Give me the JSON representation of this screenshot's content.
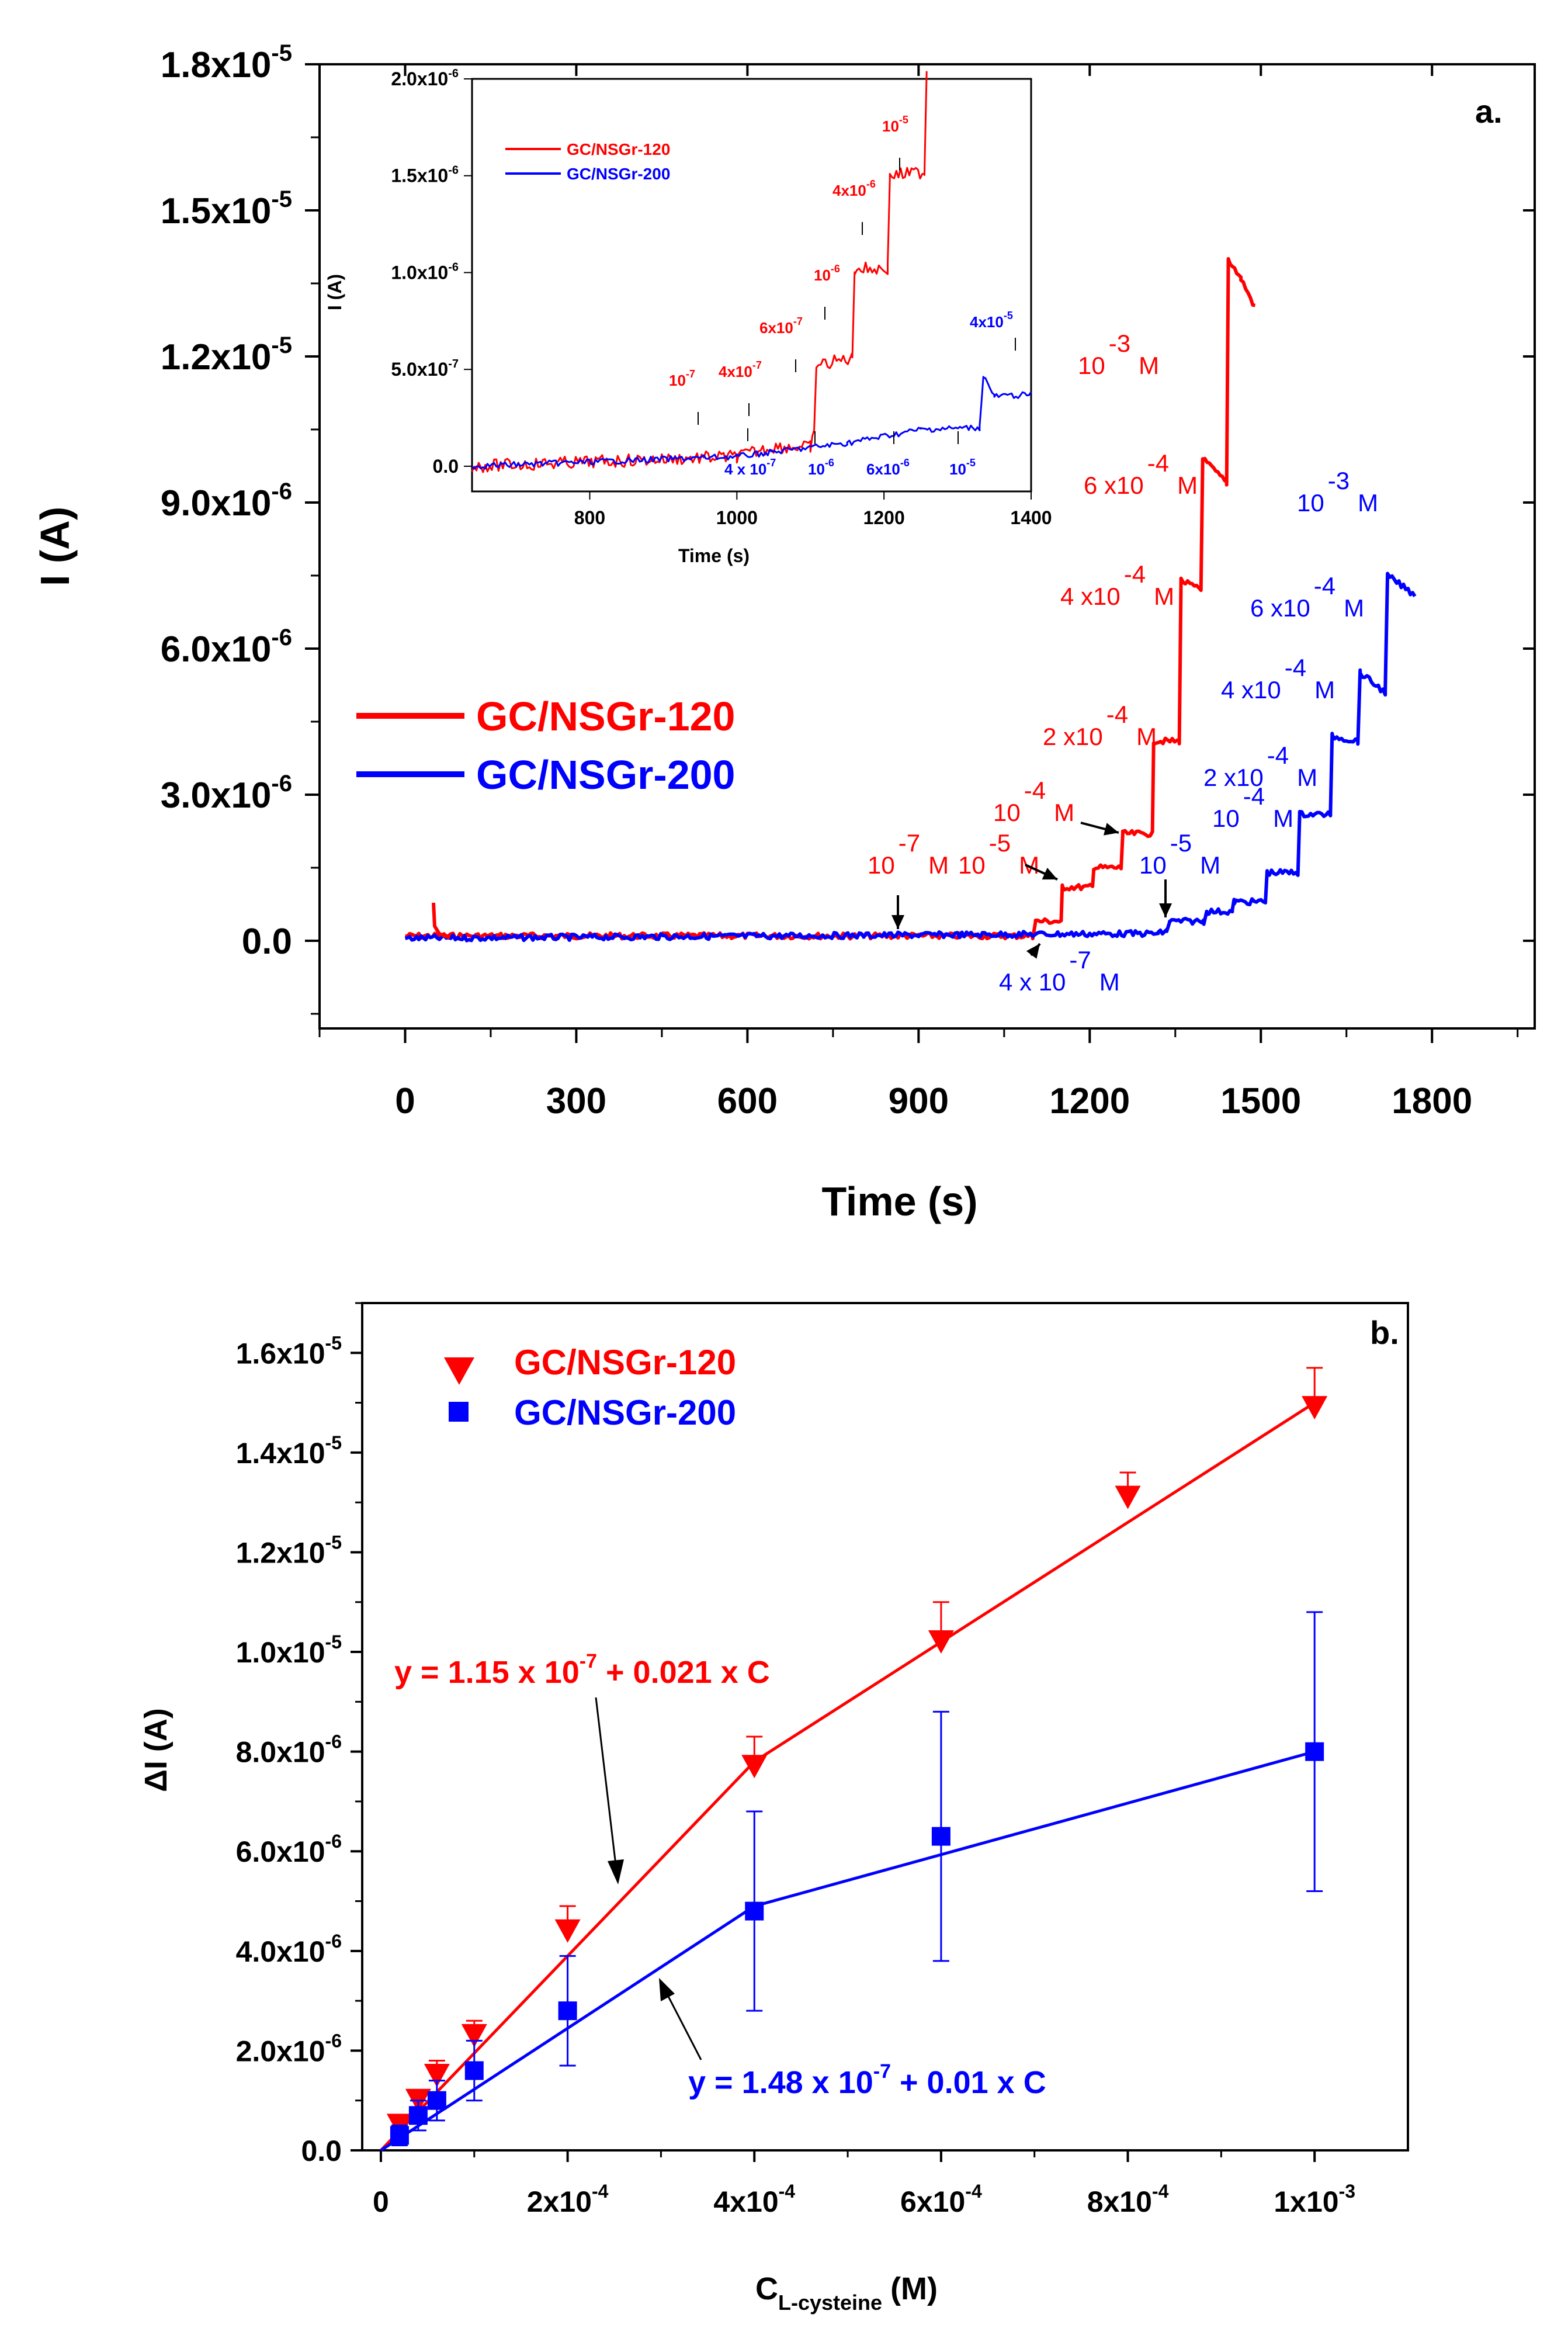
{
  "colors": {
    "red": "#ff0000",
    "blue": "#0000ff",
    "black": "#000000"
  },
  "chart_data": [
    {
      "panel": "a.",
      "type": "line",
      "xlabel": "Time (s)",
      "ylabel": "I (A)",
      "xlim": [
        -150,
        1980
      ],
      "ylim": [
        -1.8e-06,
        1.8e-05
      ],
      "xticks": [
        0,
        300,
        600,
        900,
        1200,
        1500,
        1800
      ],
      "x_tick_labels": [
        "0",
        "300",
        "600",
        "900",
        "1200",
        "1500",
        "1800"
      ],
      "yticks": [
        0,
        3e-06,
        6e-06,
        9e-06,
        1.2e-05,
        1.5e-05,
        1.8e-05
      ],
      "y_tick_labels": [
        {
          "m": "0.0",
          "e": ""
        },
        {
          "m": "3.0x10",
          "e": "-6"
        },
        {
          "m": "6.0x10",
          "e": "-6"
        },
        {
          "m": "9.0x10",
          "e": "-6"
        },
        {
          "m": "1.2x10",
          "e": "-5"
        },
        {
          "m": "1.5x10",
          "e": "-5"
        },
        {
          "m": "1.8x10",
          "e": "-5"
        }
      ],
      "legend": [
        "GC/NSGr-120",
        "GC/NSGr-200"
      ],
      "series": [
        {
          "name": "GC/NSGr-120",
          "steps": [
            [
              0,
              1e-07
            ],
            [
              1100,
              1e-07
            ],
            [
              1105,
              4e-07
            ],
            [
              1150,
              4e-07
            ],
            [
              1152,
              1.1e-06
            ],
            [
              1205,
              1.1e-06
            ],
            [
              1207,
              1.5e-06
            ],
            [
              1255,
              1.5e-06
            ],
            [
              1258,
              2.2e-06
            ],
            [
              1310,
              2.2e-06
            ],
            [
              1312,
              4.1e-06
            ],
            [
              1357,
              4.1e-06
            ],
            [
              1360,
              7.4e-06
            ],
            [
              1395,
              7.2e-06
            ],
            [
              1398,
              9.9e-06
            ],
            [
              1440,
              9.4e-06
            ],
            [
              1443,
              1.4e-05
            ],
            [
              1465,
              1.36e-05
            ],
            [
              1490,
              1.3e-05
            ]
          ]
        },
        {
          "name": "GC/NSGr-200",
          "steps": [
            [
              0,
              5e-08
            ],
            [
              1320,
              1.5e-07
            ],
            [
              1335,
              2e-07
            ],
            [
              1340,
              4e-07
            ],
            [
              1400,
              4e-07
            ],
            [
              1405,
              6e-07
            ],
            [
              1450,
              6e-07
            ],
            [
              1453,
              8e-07
            ],
            [
              1508,
              8e-07
            ],
            [
              1511,
              1.4e-06
            ],
            [
              1565,
              1.4e-06
            ],
            [
              1568,
              2.6e-06
            ],
            [
              1622,
              2.6e-06
            ],
            [
              1625,
              4.2e-06
            ],
            [
              1670,
              4.1e-06
            ],
            [
              1674,
              5.5e-06
            ],
            [
              1718,
              5.1e-06
            ],
            [
              1722,
              7.5e-06
            ],
            [
              1770,
              7.1e-06
            ]
          ]
        }
      ],
      "annotations_red": [
        {
          "b": "10",
          "e": "-7",
          "u": "M"
        },
        {
          "b": "10",
          "e": "-5",
          "u": "M"
        },
        {
          "b": "10",
          "e": "-4",
          "u": "M"
        },
        {
          "b": "2 x10",
          "e": "-4",
          "u": "M"
        },
        {
          "b": "4 x10",
          "e": "-4",
          "u": "M"
        },
        {
          "b": "6 x10",
          "e": "-4",
          "u": "M"
        },
        {
          "b": "10",
          "e": "-3",
          "u": "M"
        }
      ],
      "annotations_blue": [
        {
          "b": "4 x 10",
          "e": "-7",
          "u": "M"
        },
        {
          "b": "10",
          "e": "-5",
          "u": "M"
        },
        {
          "b": "10",
          "e": "-4",
          "u": "M"
        },
        {
          "b": "2 x10",
          "e": "-4",
          "u": "M"
        },
        {
          "b": "4 x10",
          "e": "-4",
          "u": "M"
        },
        {
          "b": "6 x10",
          "e": "-4",
          "u": "M"
        },
        {
          "b": "10",
          "e": "-3",
          "u": "M"
        }
      ],
      "inset": {
        "type": "line",
        "xlabel": "Time (s)",
        "ylabel": "I (A)",
        "xlim": [
          640,
          1400
        ],
        "ylim": [
          -1.3e-07,
          2e-06
        ],
        "xticks": [
          800,
          1000,
          1200,
          1400
        ],
        "x_tick_labels": [
          "800",
          "1000",
          "1200",
          "1400"
        ],
        "yticks": [
          0,
          5e-07,
          1e-06,
          1.5e-06,
          2e-06
        ],
        "y_tick_labels": [
          {
            "m": "0.0",
            "e": ""
          },
          {
            "m": "5.0x10",
            "e": "-7"
          },
          {
            "m": "1.0x10",
            "e": "-6"
          },
          {
            "m": "1.5x10",
            "e": "-6"
          },
          {
            "m": "2.0x10",
            "e": "-6"
          }
        ],
        "legend": [
          "GC/NSGr-120",
          "GC/NSGr-200"
        ],
        "series": [
          {
            "name": "GC/NSGr-120",
            "steps": [
              [
                640,
                0.0
              ],
              [
                1000,
                5e-08
              ],
              [
                1050,
                1e-07
              ],
              [
                1100,
                1e-07
              ],
              [
                1105,
                1.6e-07
              ],
              [
                1108,
                5.2e-07
              ],
              [
                1157,
                5.6e-07
              ],
              [
                1160,
                1.02e-06
              ],
              [
                1205,
                1.02e-06
              ],
              [
                1208,
                1.5e-06
              ],
              [
                1255,
                1.52e-06
              ],
              [
                1258,
                2.05e-06
              ]
            ]
          },
          {
            "name": "GC/NSGr-200",
            "steps": [
              [
                640,
                0.0
              ],
              [
                1000,
                5e-08
              ],
              [
                1150,
                1.2e-07
              ],
              [
                1250,
                1.9e-07
              ],
              [
                1330,
                2e-07
              ],
              [
                1335,
                4.7e-07
              ],
              [
                1350,
                3.6e-07
              ],
              [
                1400,
                3.7e-07
              ]
            ]
          }
        ],
        "annotations_red": [
          {
            "b": "10",
            "e": "-7"
          },
          {
            "b": "4x10",
            "e": "-7"
          },
          {
            "b": "6x10",
            "e": "-7"
          },
          {
            "b": "10",
            "e": "-6"
          },
          {
            "b": "4x10",
            "e": "-6"
          },
          {
            "b": "10",
            "e": "-5"
          }
        ],
        "annotations_blue": [
          {
            "b": "4 x 10",
            "e": "-7"
          },
          {
            "b": "10",
            "e": "-6"
          },
          {
            "b": "6x10",
            "e": "-6"
          },
          {
            "b": "10",
            "e": "-5"
          },
          {
            "b": "4x10",
            "e": "-5"
          }
        ]
      }
    },
    {
      "panel": "b.",
      "type": "scatter",
      "xlabel": "C",
      "xlabel_sub": "L-cysteine",
      "xlabel_unit": "(M)",
      "ylabel": "ΔI (A)",
      "xlim": [
        -2e-05,
        0.0011
      ],
      "ylim": [
        0,
        1.7e-05
      ],
      "xticks": [
        0,
        0.0002,
        0.0004,
        0.0006,
        0.0008,
        0.001
      ],
      "x_tick_labels": [
        {
          "m": "0",
          "e": ""
        },
        {
          "m": "2x10",
          "e": "-4"
        },
        {
          "m": "4x10",
          "e": "-4"
        },
        {
          "m": "6x10",
          "e": "-4"
        },
        {
          "m": "8x10",
          "e": "-4"
        },
        {
          "m": "1x10",
          "e": "-3"
        }
      ],
      "yticks": [
        0,
        2e-06,
        4e-06,
        6e-06,
        8e-06,
        1e-05,
        1.2e-05,
        1.4e-05,
        1.6e-05
      ],
      "y_tick_labels": [
        {
          "m": "0.0",
          "e": ""
        },
        {
          "m": "2.0x10",
          "e": "-6"
        },
        {
          "m": "4.0x10",
          "e": "-6"
        },
        {
          "m": "6.0x10",
          "e": "-6"
        },
        {
          "m": "8.0x10",
          "e": "-6"
        },
        {
          "m": "1.0x10",
          "e": "-5"
        },
        {
          "m": "1.2x10",
          "e": "-5"
        },
        {
          "m": "1.4x10",
          "e": "-5"
        },
        {
          "m": "1.6x10",
          "e": "-5"
        }
      ],
      "legend": [
        "GC/NSGr-120",
        "GC/NSGr-200"
      ],
      "series": [
        {
          "name": "GC/NSGr-120",
          "marker": "triangle-down",
          "x": [
            2e-05,
            4e-05,
            6e-05,
            0.0001,
            0.0002,
            0.0004,
            0.0006,
            0.0008,
            0.001
          ],
          "y": [
            5e-07,
            1e-06,
            1.5e-06,
            2.3e-06,
            4.4e-06,
            7.7e-06,
            1.02e-05,
            1.31e-05,
            1.49e-05
          ],
          "err": [
            2e-07,
            2e-07,
            3e-07,
            3e-07,
            5e-07,
            6e-07,
            8e-07,
            5e-07,
            8e-07
          ],
          "fit": [
            [
              0,
              0
            ],
            [
              0.0004,
              7.8e-06
            ],
            [
              0.001,
              1.5e-05
            ]
          ]
        },
        {
          "name": "GC/NSGr-200",
          "marker": "square",
          "x": [
            2e-05,
            4e-05,
            6e-05,
            0.0001,
            0.0002,
            0.0004,
            0.0006,
            0.001
          ],
          "y": [
            3e-07,
            7e-07,
            1e-06,
            1.6e-06,
            2.8e-06,
            4.8e-06,
            6.3e-06,
            8e-06
          ],
          "err": [
            2e-07,
            3e-07,
            4e-07,
            6e-07,
            1.1e-06,
            2e-06,
            2.5e-06,
            2.8e-06
          ],
          "fit": [
            [
              0,
              0
            ],
            [
              0.0004,
              4.9e-06
            ],
            [
              0.001,
              8e-06
            ]
          ]
        }
      ],
      "equations": [
        {
          "pre": "y = 1.15 x 10",
          "e": "-7",
          "post": " + 0.021 x C",
          "color": "red"
        },
        {
          "pre": "y = 1.48 x 10",
          "e": "-7",
          "post": " + 0.01 x C",
          "color": "blue"
        }
      ]
    }
  ]
}
